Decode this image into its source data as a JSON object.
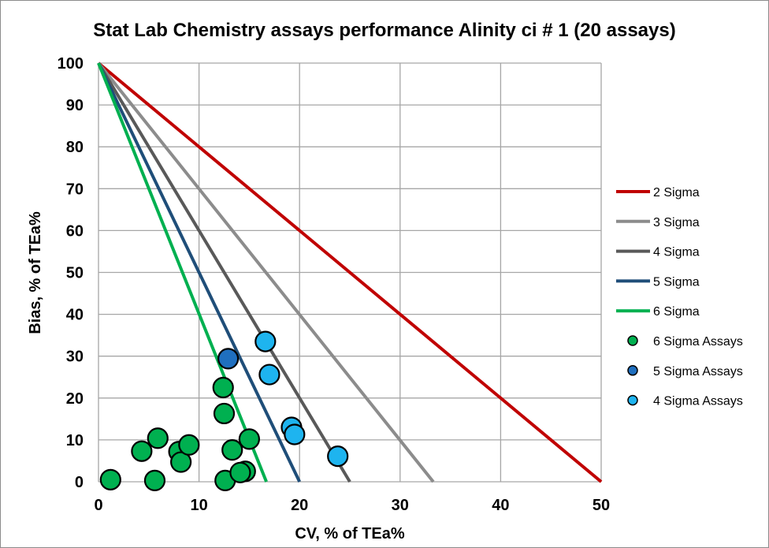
{
  "chart_data": {
    "type": "scatter",
    "title": "Stat Lab Chemistry assays performance Alinity ci # 1 (20 assays)",
    "xlabel": "CV, % of TEa%",
    "ylabel": "Bias, % of TEa%",
    "xlim": [
      0,
      50
    ],
    "ylim": [
      0,
      100
    ],
    "x_ticks": [
      "0",
      "10",
      "20",
      "30",
      "40",
      "50"
    ],
    "y_ticks": [
      "0",
      "10",
      "20",
      "30",
      "40",
      "50",
      "60",
      "70",
      "80",
      "90",
      "100"
    ],
    "grid": true,
    "legend_position": "right",
    "lines": [
      {
        "name": "2 Sigma",
        "color": "#c00000",
        "x": [
          0,
          50
        ],
        "y": [
          100,
          0
        ]
      },
      {
        "name": "3 Sigma",
        "color": "#8c8c8c",
        "x": [
          0,
          33.3
        ],
        "y": [
          100,
          0
        ]
      },
      {
        "name": "4 Sigma",
        "color": "#595959",
        "x": [
          0,
          25
        ],
        "y": [
          100,
          0
        ]
      },
      {
        "name": "5 Sigma",
        "color": "#1f4e79",
        "x": [
          0,
          20
        ],
        "y": [
          100,
          0
        ]
      },
      {
        "name": "6 Sigma",
        "color": "#00b050",
        "x": [
          0,
          16.7
        ],
        "y": [
          100,
          0
        ]
      }
    ],
    "series": [
      {
        "name": "6 Sigma Assays",
        "color": "#00b050",
        "points": [
          {
            "x": 1.2,
            "y": 0.5
          },
          {
            "x": 5.6,
            "y": 0.3
          },
          {
            "x": 4.3,
            "y": 7.3
          },
          {
            "x": 5.9,
            "y": 10.4
          },
          {
            "x": 8.0,
            "y": 7.2
          },
          {
            "x": 8.2,
            "y": 4.7
          },
          {
            "x": 9.0,
            "y": 8.8
          },
          {
            "x": 12.4,
            "y": 22.5
          },
          {
            "x": 12.5,
            "y": 16.3
          },
          {
            "x": 12.6,
            "y": 0.3
          },
          {
            "x": 13.3,
            "y": 7.6
          },
          {
            "x": 14.6,
            "y": 2.5
          },
          {
            "x": 14.1,
            "y": 2.2
          },
          {
            "x": 15.0,
            "y": 10.2
          }
        ]
      },
      {
        "name": "5 Sigma Assays",
        "color": "#1f6fbf",
        "points": [
          {
            "x": 12.9,
            "y": 29.4
          }
        ]
      },
      {
        "name": "4 Sigma Assays",
        "color": "#1eb4ef",
        "points": [
          {
            "x": 16.6,
            "y": 33.5
          },
          {
            "x": 17.0,
            "y": 25.6
          },
          {
            "x": 19.2,
            "y": 13.0
          },
          {
            "x": 19.5,
            "y": 11.3
          },
          {
            "x": 23.8,
            "y": 6.1
          }
        ]
      }
    ]
  }
}
